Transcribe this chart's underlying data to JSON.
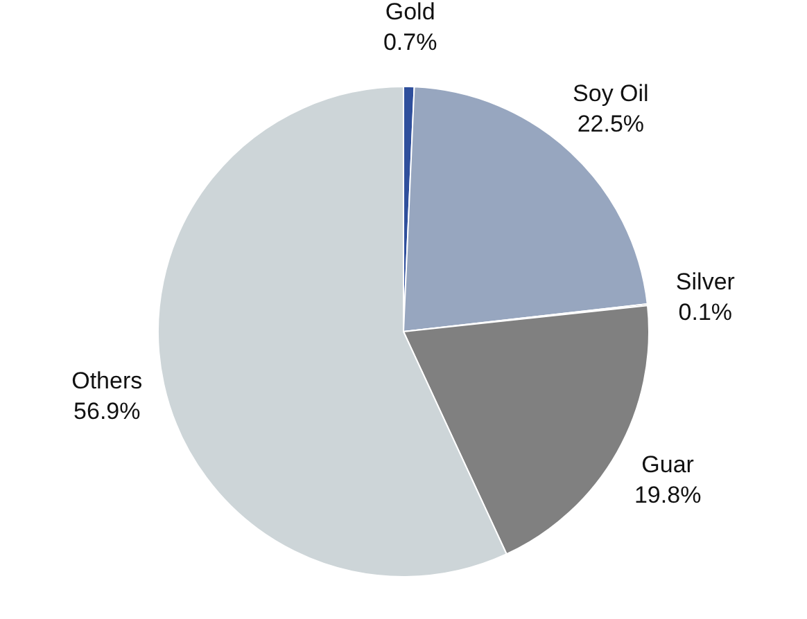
{
  "chart_data": {
    "type": "pie",
    "categories": [
      "Gold",
      "Soy Oil",
      "Silver",
      "Guar",
      "Others"
    ],
    "values": [
      0.7,
      22.5,
      0.1,
      19.8,
      56.9
    ],
    "colors": [
      "#2f4f9c",
      "#97a6bf",
      "#1f1f1f",
      "#808080",
      "#cdd5d8"
    ],
    "value_labels": [
      "0.7%",
      "22.5%",
      "0.1%",
      "19.8%",
      "56.9%"
    ],
    "legend": false
  }
}
